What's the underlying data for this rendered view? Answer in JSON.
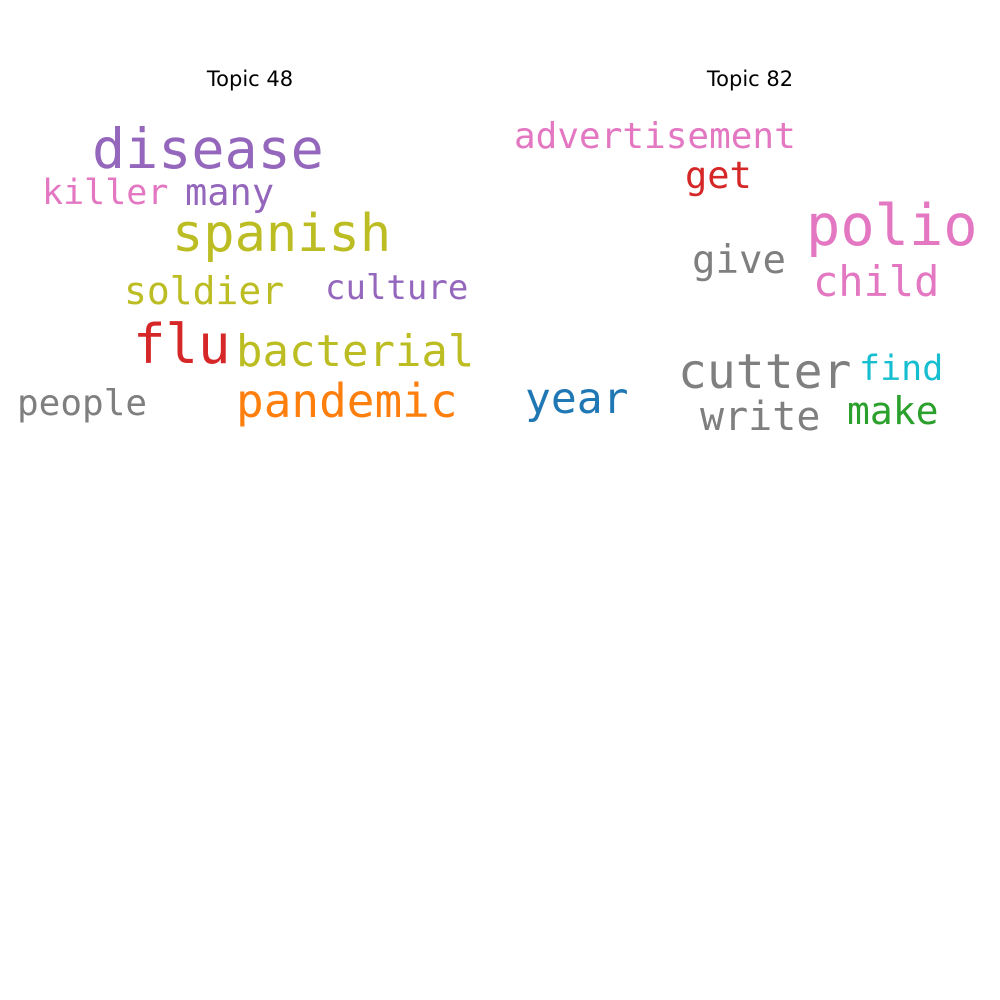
{
  "panels": [
    {
      "title": "Topic 48",
      "words": [
        {
          "text": "disease",
          "color": "#9467bd"
        },
        {
          "text": "killer",
          "color": "#e377c2"
        },
        {
          "text": "many",
          "color": "#9467bd"
        },
        {
          "text": "spanish",
          "color": "#bcbd22"
        },
        {
          "text": "soldier",
          "color": "#bcbd22"
        },
        {
          "text": "culture",
          "color": "#9467bd"
        },
        {
          "text": "flu",
          "color": "#d62728"
        },
        {
          "text": "bacterial",
          "color": "#bcbd22"
        },
        {
          "text": "people",
          "color": "#7f7f7f"
        },
        {
          "text": "pandemic",
          "color": "#ff7f0e"
        }
      ]
    },
    {
      "title": "Topic 82",
      "words": [
        {
          "text": "advertisement",
          "color": "#e377c2"
        },
        {
          "text": "get",
          "color": "#d62728"
        },
        {
          "text": "polio",
          "color": "#e377c2"
        },
        {
          "text": "give",
          "color": "#7f7f7f"
        },
        {
          "text": "child",
          "color": "#e377c2"
        },
        {
          "text": "cutter",
          "color": "#7f7f7f"
        },
        {
          "text": "find",
          "color": "#17becf"
        },
        {
          "text": "year",
          "color": "#1f77b4"
        },
        {
          "text": "write",
          "color": "#7f7f7f"
        },
        {
          "text": "make",
          "color": "#2ca02c"
        }
      ]
    }
  ]
}
